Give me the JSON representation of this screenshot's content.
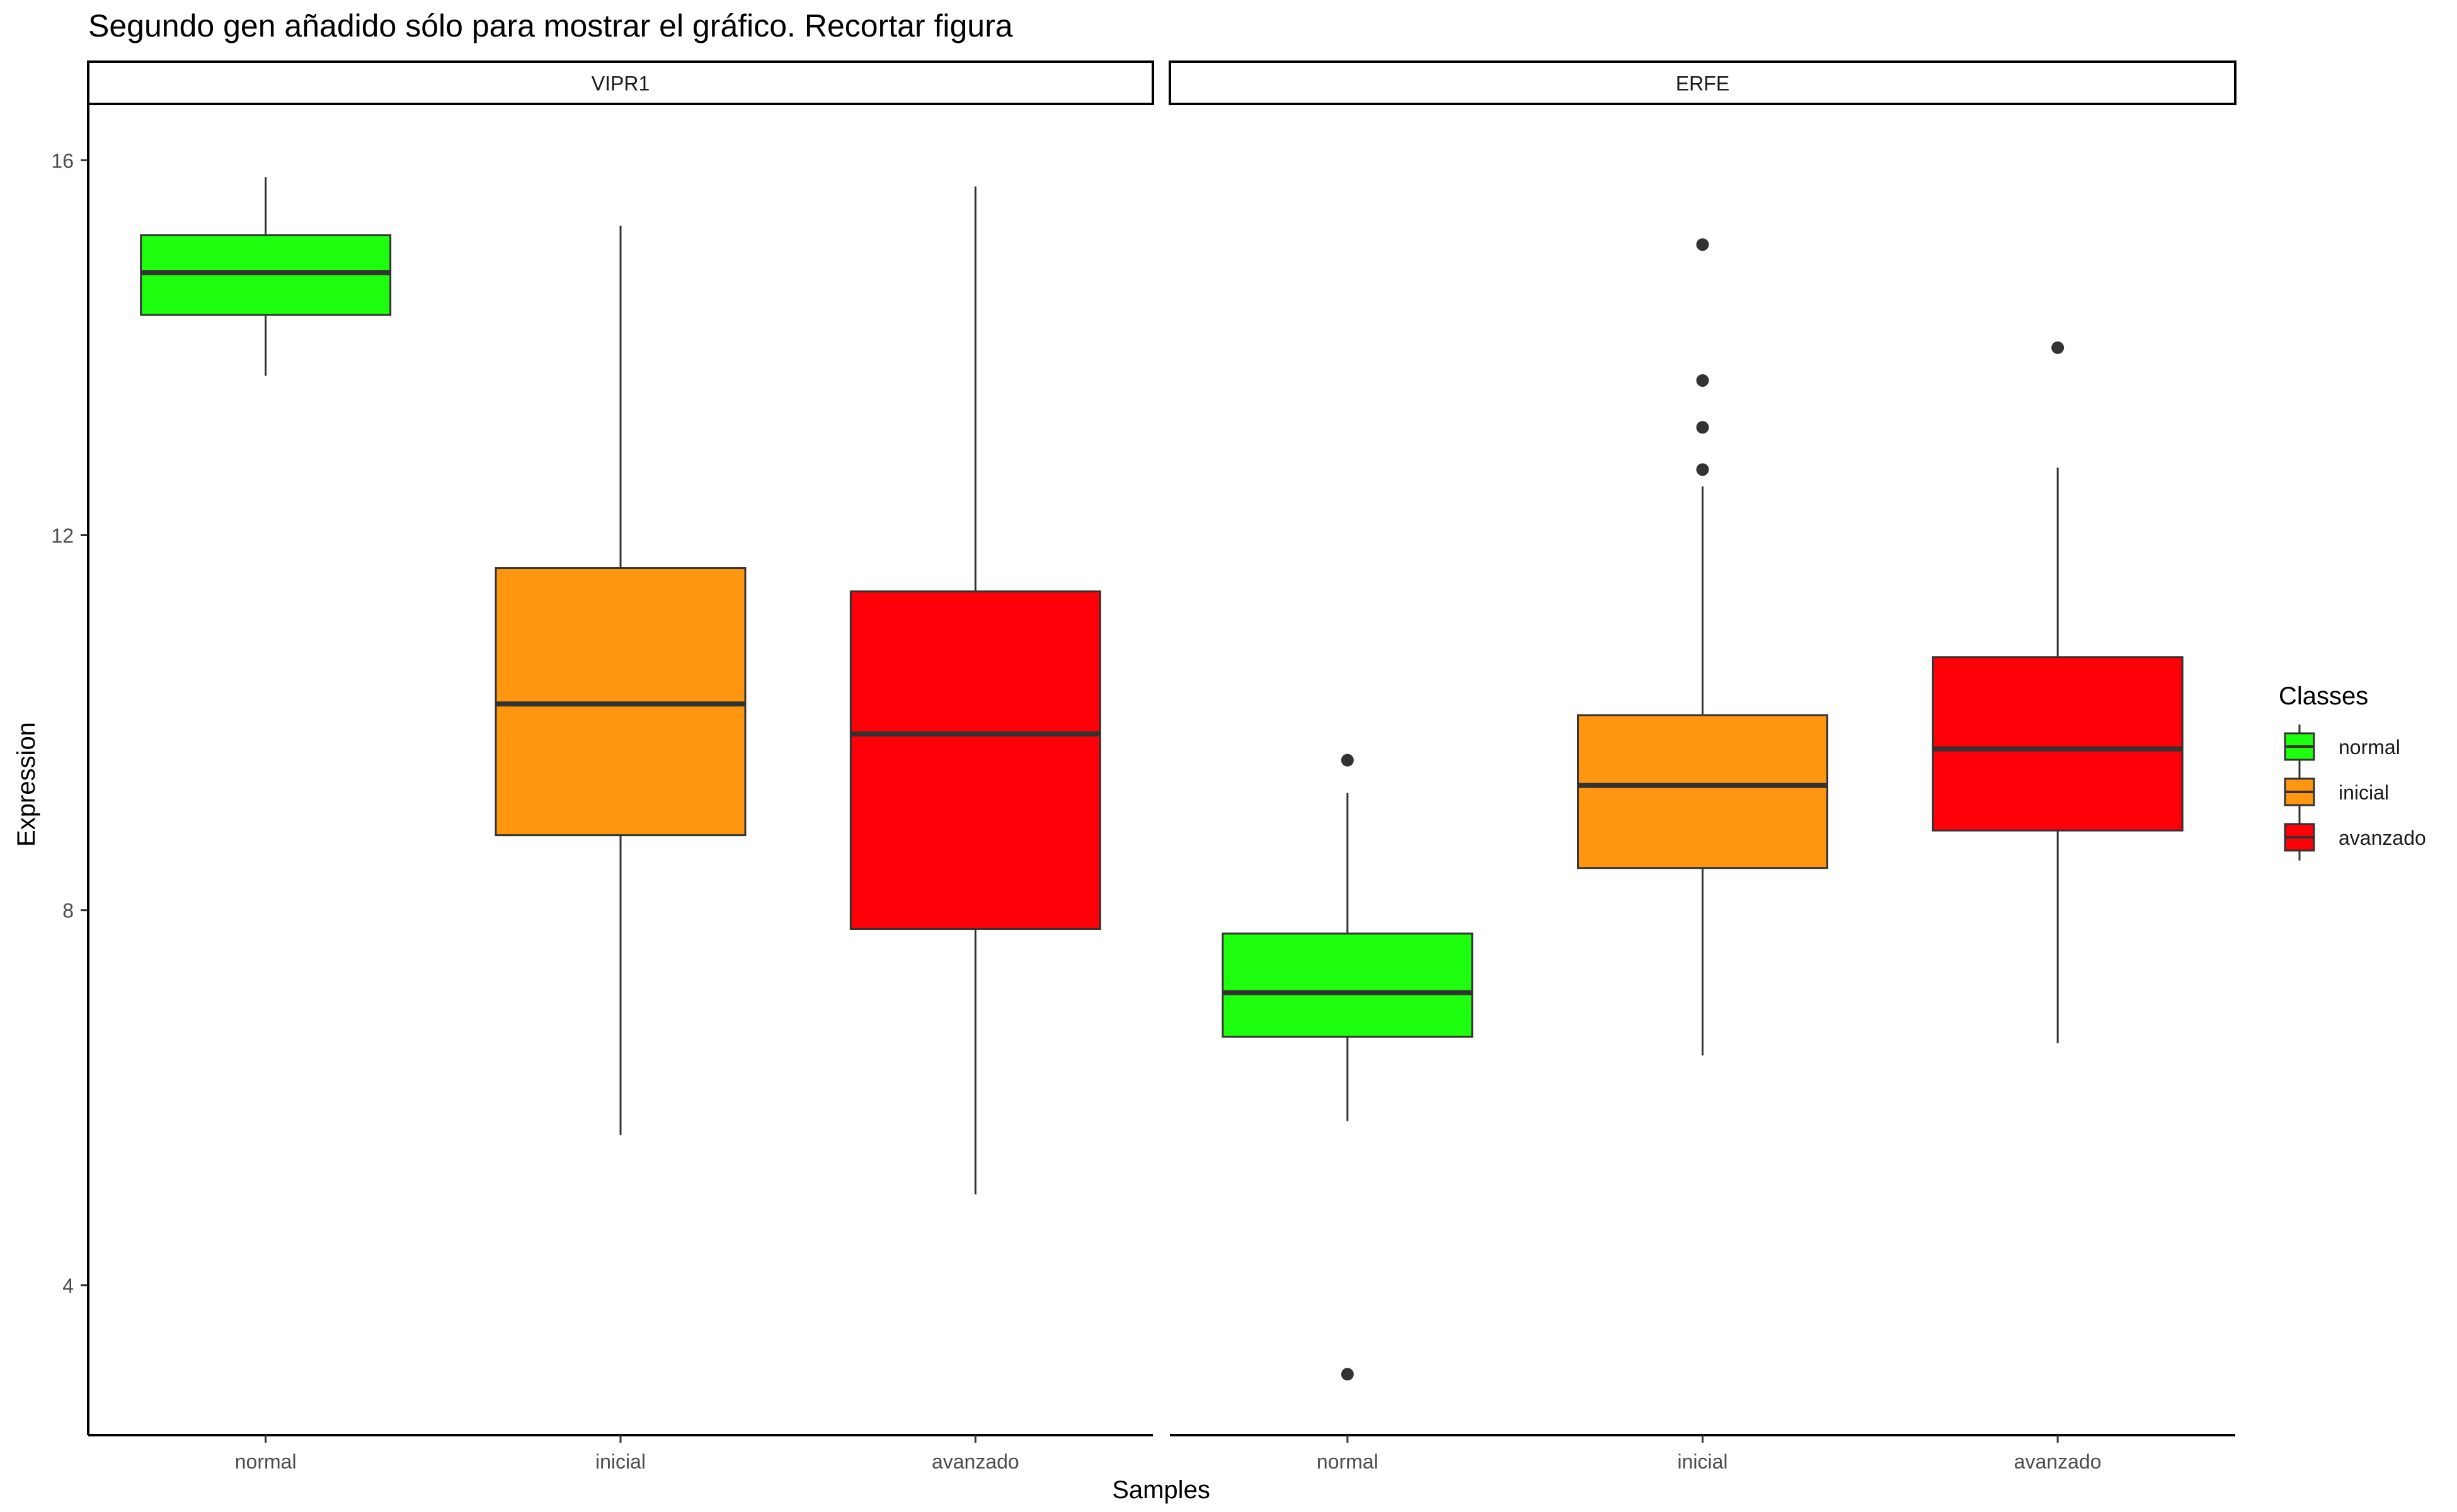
{
  "chart_data": {
    "type": "boxplot",
    "title": "Segundo gen añadido sólo para mostrar el gráfico. Recortar figura",
    "xlabel": "Samples",
    "ylabel": "Expression",
    "ylim": [
      2.4,
      16.6
    ],
    "yticks": [
      4,
      8,
      12,
      16
    ],
    "ytick_labels": [
      "4",
      "8",
      "12",
      "16"
    ],
    "categories": [
      "normal",
      "inicial",
      "avanzado"
    ],
    "colors": {
      "normal": "#1EFF0F",
      "inicial": "#FF960F",
      "avanzado": "#FF0008"
    },
    "legend": {
      "title": "Classes",
      "position": "right",
      "items": [
        "normal",
        "inicial",
        "avanzado"
      ]
    },
    "grid": false,
    "panels": [
      {
        "name": "VIPR1",
        "boxes": [
          {
            "category": "normal",
            "whisker_low": 13.7,
            "q1": 14.35,
            "median": 14.8,
            "q3": 15.2,
            "whisker_high": 15.82,
            "outliers": []
          },
          {
            "category": "inicial",
            "whisker_low": 5.6,
            "q1": 8.8,
            "median": 10.2,
            "q3": 11.65,
            "whisker_high": 15.3,
            "outliers": []
          },
          {
            "category": "avanzado",
            "whisker_low": 4.97,
            "q1": 7.8,
            "median": 9.88,
            "q3": 11.4,
            "whisker_high": 15.72,
            "outliers": []
          }
        ]
      },
      {
        "name": "ERFE",
        "boxes": [
          {
            "category": "normal",
            "whisker_low": 5.75,
            "q1": 6.65,
            "median": 7.12,
            "q3": 7.75,
            "whisker_high": 9.25,
            "outliers": [
              9.6,
              3.05
            ]
          },
          {
            "category": "inicial",
            "whisker_low": 6.45,
            "q1": 8.45,
            "median": 9.33,
            "q3": 10.08,
            "whisker_high": 12.52,
            "outliers": [
              15.1,
              13.65,
              13.15,
              12.7
            ]
          },
          {
            "category": "avanzado",
            "whisker_low": 6.58,
            "q1": 8.85,
            "median": 9.72,
            "q3": 10.7,
            "whisker_high": 12.72,
            "outliers": [
              14.0
            ]
          }
        ]
      }
    ]
  }
}
